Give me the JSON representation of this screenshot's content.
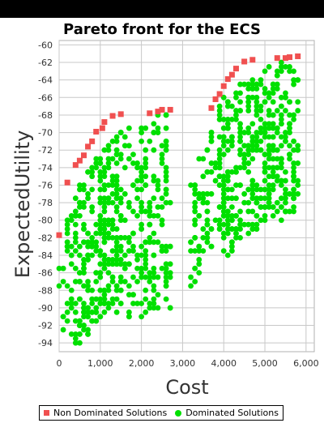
{
  "chart_data": {
    "type": "scatter",
    "title": "Pareto front for the ECS",
    "xlabel": "Cost",
    "ylabel": "ExpectedUtility",
    "xlim": [
      0,
      6200
    ],
    "ylim": [
      -95,
      -59.5
    ],
    "x_ticks": [
      "0",
      "1,000",
      "2,000",
      "3,000",
      "4,000",
      "5,000",
      "6,000"
    ],
    "x_tick_values": [
      0,
      1000,
      2000,
      3000,
      4000,
      5000,
      6000
    ],
    "y_ticks": [
      "-60",
      "-62",
      "-64",
      "-66",
      "-68",
      "-70",
      "-72",
      "-74",
      "-76",
      "-78",
      "-80",
      "-82",
      "-84",
      "-86",
      "-88",
      "-90",
      "-92",
      "-94"
    ],
    "y_tick_values": [
      -60,
      -62,
      -64,
      -66,
      -68,
      -70,
      -72,
      -74,
      -76,
      -78,
      -80,
      -82,
      -84,
      -86,
      -88,
      -90,
      -92,
      -94
    ],
    "grid": true,
    "legend_position": "bottom",
    "series": [
      {
        "name": "Non Dominated Solutions",
        "color": "#f05050",
        "marker": "square",
        "points": [
          [
            0,
            -81.7
          ],
          [
            200,
            -75.7
          ],
          [
            400,
            -73.7
          ],
          [
            500,
            -73.2
          ],
          [
            600,
            -72.6
          ],
          [
            700,
            -71.6
          ],
          [
            800,
            -71.0
          ],
          [
            900,
            -69.9
          ],
          [
            1050,
            -69.5
          ],
          [
            1100,
            -68.8
          ],
          [
            1300,
            -68.1
          ],
          [
            1500,
            -67.9
          ],
          [
            2200,
            -67.8
          ],
          [
            2400,
            -67.6
          ],
          [
            2500,
            -67.4
          ],
          [
            2700,
            -67.4
          ],
          [
            3700,
            -67.2
          ],
          [
            3800,
            -66.2
          ],
          [
            3900,
            -65.6
          ],
          [
            4000,
            -64.7
          ],
          [
            4100,
            -63.9
          ],
          [
            4200,
            -63.4
          ],
          [
            4300,
            -62.7
          ],
          [
            4500,
            -61.9
          ],
          [
            4700,
            -61.7
          ],
          [
            5300,
            -61.5
          ],
          [
            5500,
            -61.5
          ],
          [
            5600,
            -61.4
          ],
          [
            5800,
            -61.3
          ]
        ]
      },
      {
        "name": "Dominated Solutions",
        "color": "#00e000",
        "marker": "circle",
        "clusters": [
          {
            "x": [
              0,
              300
            ],
            "ytop": [
              -80.8,
              -76.8
            ],
            "yspan": 13.5,
            "count": 24
          },
          {
            "x": [
              300,
              1500
            ],
            "ytop": [
              -76.8,
              -69.0
            ],
            "yspan": 19.0,
            "count": 260
          },
          {
            "x": [
              1400,
              2700
            ],
            "ytop": [
              -69.0,
              -67.5
            ],
            "yspan": 23.0,
            "count": 220
          },
          {
            "x": [
              3200,
              4000
            ],
            "ytop": [
              -75.0,
              -66.5
            ],
            "yspan": 13.5,
            "count": 95
          },
          {
            "x": [
              3900,
              5000
            ],
            "ytop": [
              -66.5,
              -62.5
            ],
            "yspan": 18.0,
            "count": 230
          },
          {
            "x": [
              5000,
              5800
            ],
            "ytop": [
              -62.5,
              -61.5
            ],
            "yspan": 18.0,
            "count": 180
          }
        ]
      }
    ]
  }
}
